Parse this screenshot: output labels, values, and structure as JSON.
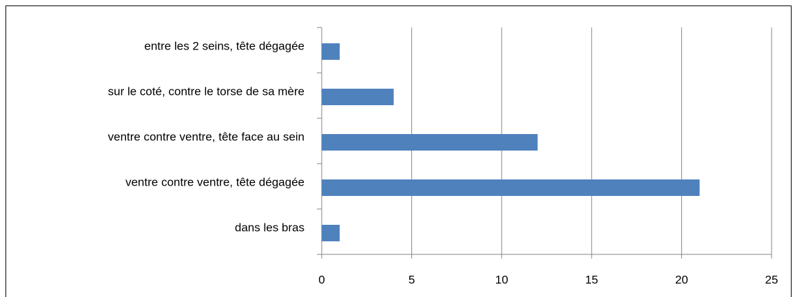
{
  "chart_data": {
    "type": "barh",
    "categories": [
      "entre les 2 seins, tête dégagée",
      "sur le coté, contre le torse de sa mère",
      "ventre contre ventre, tête face au sein",
      "ventre contre ventre, tête dégagée",
      "dans les bras"
    ],
    "values": [
      1,
      4,
      12,
      21,
      1
    ],
    "color": "#4f81bd",
    "xlim": [
      0,
      25
    ],
    "xticks": [
      0,
      5,
      10,
      15,
      20,
      25
    ],
    "grid": true
  }
}
